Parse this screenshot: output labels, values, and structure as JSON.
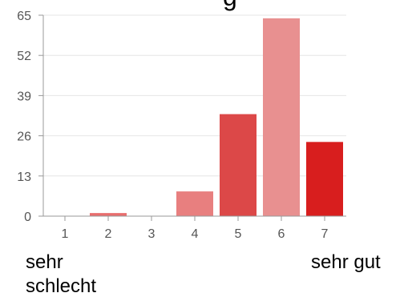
{
  "chart_data": {
    "type": "bar",
    "title_fragment": "g",
    "categories": [
      "1",
      "2",
      "3",
      "4",
      "5",
      "6",
      "7"
    ],
    "values": [
      0,
      1,
      0,
      8,
      33,
      64,
      24
    ],
    "colors": [
      "#e8a9a9",
      "#e86d6d",
      "#e8a9a9",
      "#e87f7f",
      "#dc4848",
      "#e89090",
      "#d81e1e"
    ],
    "ylim": [
      0,
      65
    ],
    "yticks": [
      "0",
      "13",
      "26",
      "39",
      "52",
      "65"
    ],
    "scale_labels": {
      "low": "sehr schlecht",
      "high": "sehr gut"
    }
  }
}
